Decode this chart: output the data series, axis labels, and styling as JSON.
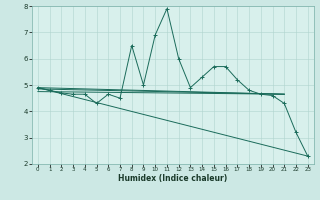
{
  "xlabel": "Humidex (Indice chaleur)",
  "x_values": [
    0,
    1,
    2,
    3,
    4,
    5,
    6,
    7,
    8,
    9,
    10,
    11,
    12,
    13,
    14,
    15,
    16,
    17,
    18,
    19,
    20,
    21,
    22,
    23
  ],
  "main_line": [
    4.9,
    4.8,
    4.7,
    4.65,
    4.65,
    4.3,
    4.65,
    4.5,
    6.5,
    5.0,
    6.9,
    7.9,
    6.0,
    4.9,
    5.3,
    5.7,
    5.7,
    5.2,
    4.8,
    4.65,
    4.6,
    4.3,
    3.2,
    2.3
  ],
  "line2_x": [
    0,
    21
  ],
  "line2_y": [
    4.9,
    4.65
  ],
  "line3_x": [
    0,
    21
  ],
  "line3_y": [
    4.9,
    4.65
  ],
  "line4_x": [
    0,
    21
  ],
  "line4_y": [
    4.9,
    2.3
  ],
  "xlim": [
    -0.5,
    23.5
  ],
  "ylim": [
    2,
    8
  ],
  "yticks": [
    2,
    3,
    4,
    5,
    6,
    7,
    8
  ],
  "xticks": [
    0,
    1,
    2,
    3,
    4,
    5,
    6,
    7,
    8,
    9,
    10,
    11,
    12,
    13,
    14,
    15,
    16,
    17,
    18,
    19,
    20,
    21,
    22,
    23
  ],
  "line_color": "#1a6b5a",
  "bg_color": "#cce8e4",
  "grid_color_major": "#b0d4ce",
  "grid_color_minor": "#b0d4ce",
  "plot_bg": "#d8f0ec"
}
